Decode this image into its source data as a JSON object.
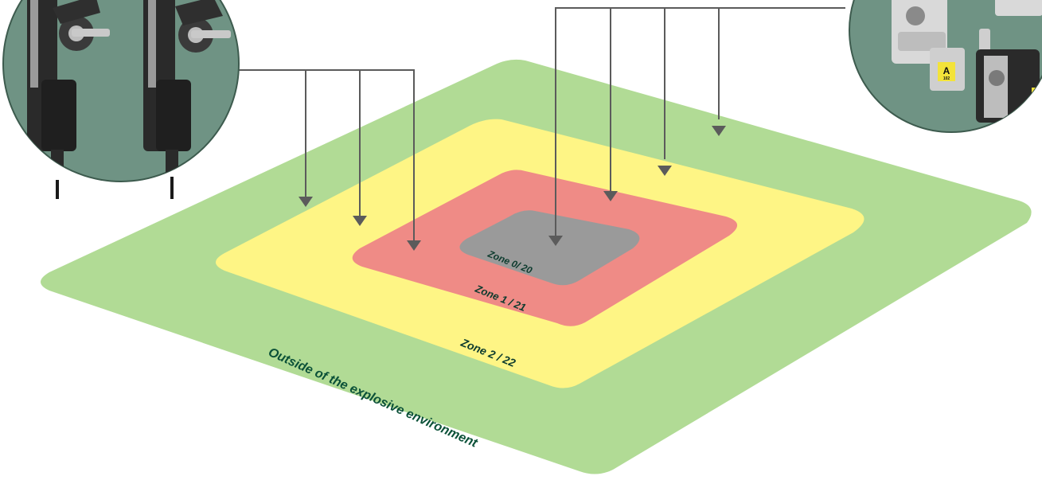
{
  "zones": {
    "outside": {
      "label": "Outside of the explosive environment",
      "color": "#b1db95"
    },
    "zone2": {
      "label": "Zone 2 / 22",
      "color": "#fef585"
    },
    "zone1": {
      "label": "Zone 1 / 21",
      "color": "#ef8b86"
    },
    "zone0": {
      "label": "Zone 0/ 20",
      "color": "#9a9a9a"
    }
  },
  "label_colors": {
    "dark": "#0d3b2e",
    "outside": "#0b5138"
  },
  "connector_color": "#5b5b5b",
  "product_images": {
    "left": {
      "name": "safety-switch-pair",
      "bg": "#6f9384"
    },
    "right": {
      "name": "trapped-key-locks",
      "bg": "#6f9384",
      "tag_text": "A",
      "tag_sub": "102",
      "tag_color": "#f3e33a"
    }
  }
}
